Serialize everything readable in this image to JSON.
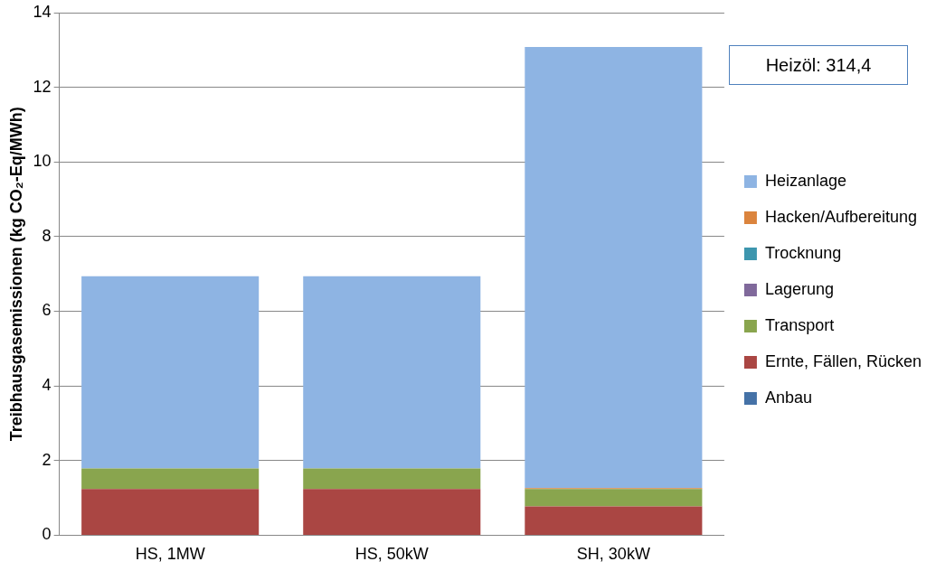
{
  "chart_data": {
    "type": "bar",
    "stacked": true,
    "ylabel": "Treibhausgasemissionen (kg CO₂-Eq/MWh)",
    "categories": [
      "HS, 1MW",
      "HS, 50kW",
      "SH, 30kW"
    ],
    "series": [
      {
        "name": "Anbau",
        "color": "#4572a7",
        "values": [
          0,
          0,
          0
        ]
      },
      {
        "name": "Ernte, Fällen, Rücken",
        "color": "#aa4643",
        "values": [
          1.24,
          1.24,
          0.77
        ]
      },
      {
        "name": "Transport",
        "color": "#89a54e",
        "values": [
          0.55,
          0.55,
          0.47
        ]
      },
      {
        "name": "Lagerung",
        "color": "#80699b",
        "values": [
          0,
          0,
          0
        ]
      },
      {
        "name": "Trocknung",
        "color": "#3d96ae",
        "values": [
          0,
          0,
          0
        ]
      },
      {
        "name": "Hacken/Aufbereitung",
        "color": "#db843d",
        "values": [
          0,
          0,
          0.02
        ]
      },
      {
        "name": "Heizanlage",
        "color": "#8eb4e3",
        "values": [
          5.15,
          5.15,
          11.82
        ]
      }
    ],
    "ylim": [
      0,
      14
    ],
    "yticks": [
      0,
      2,
      4,
      6,
      8,
      10,
      12,
      14
    ],
    "grid": "y",
    "legend": "right",
    "annotations": [
      "Heizöl: 314,4"
    ]
  }
}
